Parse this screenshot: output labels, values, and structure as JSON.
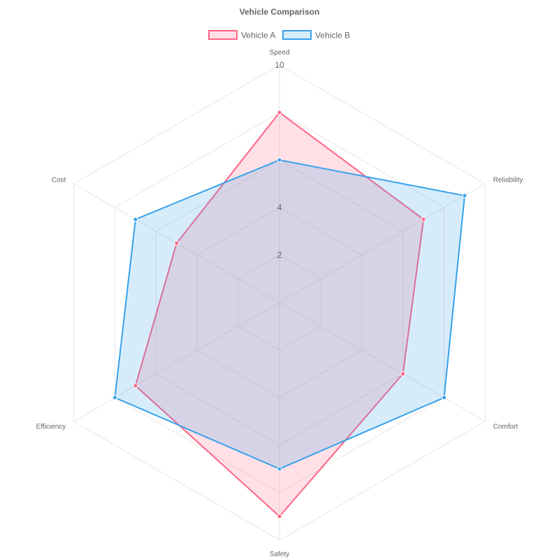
{
  "chart_data": {
    "type": "radar",
    "title": "Vehicle Comparison",
    "categories": [
      "Speed",
      "Reliability",
      "Comfort",
      "Safety",
      "Efficiency",
      "Cost"
    ],
    "series": [
      {
        "name": "Vehicle A",
        "values": [
          8,
          7,
          6,
          9,
          7,
          5
        ],
        "color": "#ff6384",
        "fill": "rgba(255, 99, 132, 0.2)"
      },
      {
        "name": "Vehicle B",
        "values": [
          6,
          9,
          8,
          7,
          8,
          7
        ],
        "color": "#36a2eb",
        "fill": "rgba(54, 162, 235, 0.2)"
      }
    ],
    "rmin": 0,
    "rmax": 10,
    "grid_levels": [
      2,
      4,
      6,
      8,
      10
    ],
    "tick_labels": [
      {
        "value": 2,
        "label": "2"
      },
      {
        "value": 4,
        "label": "4"
      },
      {
        "value": 10,
        "label": "10"
      }
    ],
    "legend_position": "top",
    "grid": true
  }
}
